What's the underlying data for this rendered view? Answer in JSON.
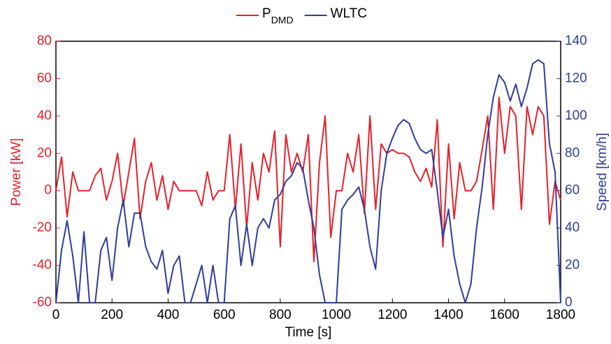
{
  "chart_data": {
    "type": "line",
    "x_label": "Time [s]",
    "y_label": "Power [kW]",
    "y2_label": "Speed [km/h]",
    "x": [
      0,
      20,
      40,
      60,
      80,
      100,
      120,
      140,
      160,
      180,
      200,
      220,
      240,
      260,
      280,
      300,
      320,
      340,
      360,
      380,
      400,
      420,
      440,
      460,
      480,
      500,
      520,
      540,
      560,
      580,
      600,
      620,
      640,
      660,
      680,
      700,
      720,
      740,
      760,
      780,
      800,
      820,
      840,
      860,
      880,
      900,
      920,
      940,
      960,
      980,
      1000,
      1020,
      1040,
      1060,
      1080,
      1100,
      1120,
      1140,
      1160,
      1180,
      1200,
      1220,
      1240,
      1260,
      1280,
      1300,
      1320,
      1340,
      1360,
      1380,
      1400,
      1420,
      1440,
      1460,
      1480,
      1500,
      1520,
      1540,
      1560,
      1580,
      1600,
      1620,
      1640,
      1660,
      1680,
      1700,
      1720,
      1740,
      1760,
      1780,
      1800
    ],
    "series": [
      {
        "name": "P",
        "subscript": "DMD",
        "color": "#e8202a",
        "axis": "y",
        "values": [
          0,
          18,
          -14,
          10,
          0,
          0,
          0,
          8,
          12,
          -5,
          5,
          20,
          -8,
          10,
          28,
          -15,
          5,
          15,
          -5,
          8,
          -10,
          5,
          0,
          0,
          0,
          0,
          -8,
          10,
          -5,
          0,
          0,
          30,
          -10,
          25,
          -20,
          15,
          -5,
          20,
          10,
          32,
          -30,
          30,
          10,
          20,
          10,
          30,
          -38,
          15,
          40,
          -25,
          0,
          0,
          20,
          10,
          30,
          -12,
          40,
          -10,
          25,
          20,
          22,
          20,
          20,
          18,
          10,
          5,
          12,
          2,
          38,
          -30,
          25,
          -15,
          15,
          0,
          0,
          5,
          22,
          40,
          -10,
          50,
          20,
          45,
          40,
          -10,
          45,
          30,
          45,
          40,
          -18,
          5,
          -5
        ]
      },
      {
        "name": "WLTC",
        "color": "#2e3c9c",
        "axis": "y2",
        "values": [
          0,
          28,
          44,
          25,
          0,
          38,
          0,
          0,
          28,
          35,
          12,
          40,
          55,
          30,
          48,
          48,
          30,
          22,
          18,
          28,
          5,
          20,
          25,
          0,
          0,
          10,
          20,
          0,
          20,
          0,
          0,
          45,
          52,
          20,
          42,
          20,
          40,
          45,
          40,
          55,
          58,
          65,
          68,
          75,
          72,
          55,
          40,
          15,
          0,
          0,
          0,
          50,
          55,
          58,
          62,
          50,
          30,
          18,
          60,
          80,
          88,
          95,
          98,
          96,
          88,
          82,
          80,
          82,
          60,
          35,
          50,
          25,
          10,
          0,
          10,
          40,
          62,
          90,
          110,
          122,
          118,
          108,
          117,
          105,
          115,
          128,
          130,
          128,
          85,
          70,
          0
        ]
      }
    ],
    "xlim": [
      0,
      1800
    ],
    "xticks": [
      0,
      200,
      400,
      600,
      800,
      1000,
      1200,
      1400,
      1600,
      1800
    ],
    "ylim": [
      -60,
      80
    ],
    "yticks": [
      -60,
      -40,
      -20,
      0,
      20,
      40,
      60,
      80
    ],
    "y2lim": [
      0,
      140
    ],
    "y2ticks": [
      0,
      20,
      40,
      60,
      80,
      100,
      120,
      140
    ],
    "y_color": "#e8202a",
    "y2_color": "#2e3c9c",
    "legend": "top"
  }
}
